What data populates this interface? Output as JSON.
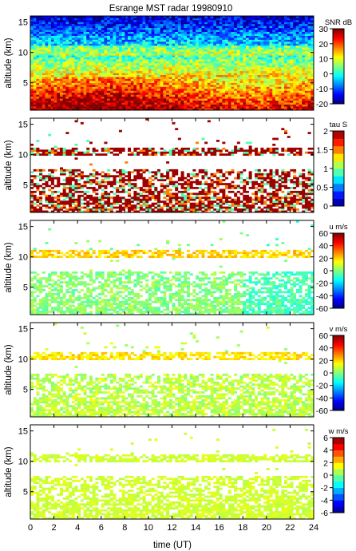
{
  "figure": {
    "title": "Esrange MST radar 19980910",
    "xlabel": "time (UT)"
  },
  "chart_data": [
    {
      "type": "heatmap",
      "name": "snr",
      "ylabel": "altitude (km)",
      "colorbar_label": "SNR dB",
      "clim": [
        -20,
        30
      ],
      "colorbar_ticks": [
        -20,
        -10,
        0,
        10,
        20,
        30
      ],
      "ylim": [
        0.5,
        16
      ],
      "yticks": [
        5,
        10,
        15
      ],
      "xlim": [
        0,
        24
      ],
      "xticks": [
        0,
        2,
        4,
        6,
        8,
        10,
        12,
        14,
        16,
        18,
        20,
        22,
        24
      ],
      "description_levels": "strong near ground, decreasing with altitude"
    },
    {
      "type": "heatmap",
      "name": "tau",
      "ylabel": "altitude (km)",
      "colorbar_label": "tau S",
      "clim": [
        0,
        2
      ],
      "colorbar_ticks": [
        0,
        0.5,
        1,
        1.5,
        2
      ],
      "colorbar_discrete_levels": 10,
      "ylim": [
        0.5,
        16
      ],
      "yticks": [
        5,
        10,
        15
      ],
      "xlim": [
        0,
        24
      ],
      "xticks": [
        0,
        2,
        4,
        6,
        8,
        10,
        12,
        14,
        16,
        18,
        20,
        22,
        24
      ]
    },
    {
      "type": "heatmap",
      "name": "u",
      "ylabel": "altitude (km)",
      "colorbar_label": "u m/s",
      "clim": [
        -60,
        60
      ],
      "colorbar_ticks": [
        -60,
        -40,
        -20,
        0,
        20,
        40,
        60
      ],
      "ylim": [
        0.5,
        16
      ],
      "yticks": [
        5,
        10,
        15
      ],
      "xlim": [
        0,
        24
      ],
      "xticks": [
        0,
        2,
        4,
        6,
        8,
        10,
        12,
        14,
        16,
        18,
        20,
        22,
        24
      ]
    },
    {
      "type": "heatmap",
      "name": "v",
      "ylabel": "altitude (km)",
      "colorbar_label": "v m/s",
      "clim": [
        -60,
        60
      ],
      "colorbar_ticks": [
        -60,
        -40,
        -20,
        0,
        20,
        40,
        60
      ],
      "ylim": [
        0.5,
        16
      ],
      "yticks": [
        5,
        10,
        15
      ],
      "xlim": [
        0,
        24
      ],
      "xticks": [
        0,
        2,
        4,
        6,
        8,
        10,
        12,
        14,
        16,
        18,
        20,
        22,
        24
      ]
    },
    {
      "type": "heatmap",
      "name": "w",
      "ylabel": "altitude (km)",
      "colorbar_label": "w m/s",
      "clim": [
        -6,
        6
      ],
      "colorbar_ticks": [
        -6,
        -4,
        -2,
        0,
        2,
        4,
        6
      ],
      "colorbar_discrete_levels": 12,
      "ylim": [
        0.5,
        16
      ],
      "yticks": [
        5,
        10,
        15
      ],
      "xlim": [
        0,
        24
      ],
      "xticks": [
        0,
        2,
        4,
        6,
        8,
        10,
        12,
        14,
        16,
        18,
        20,
        22,
        24
      ]
    }
  ],
  "colormap": "jet"
}
